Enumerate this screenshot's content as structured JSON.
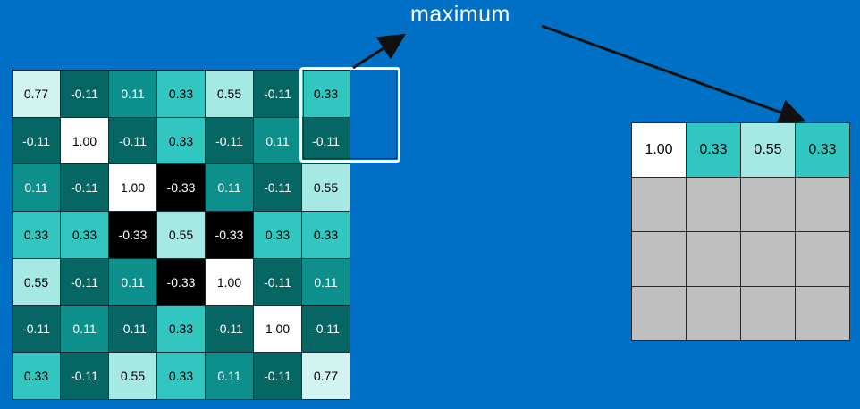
{
  "label": "maximum",
  "colors": {
    "background": "#0070c6",
    "v077": "#d2f3ef",
    "v100": "#ffffff",
    "v055": "#a6e8e3",
    "v033": "#31c6c0",
    "v011": "#0d8f8c",
    "vneg011": "#056663",
    "vneg033": "#000000",
    "empty": "#bfbfbf",
    "arrow": "#111111"
  },
  "input_grid": [
    [
      "0.77",
      "-0.11",
      "0.11",
      "0.33",
      "0.55",
      "-0.11",
      "0.33"
    ],
    [
      "-0.11",
      "1.00",
      "-0.11",
      "0.33",
      "-0.11",
      "0.11",
      "-0.11"
    ],
    [
      "0.11",
      "-0.11",
      "1.00",
      "-0.33",
      "0.11",
      "-0.11",
      "0.55"
    ],
    [
      "0.33",
      "0.33",
      "-0.33",
      "0.55",
      "-0.33",
      "0.33",
      "0.33"
    ],
    [
      "0.55",
      "-0.11",
      "0.11",
      "-0.33",
      "1.00",
      "-0.11",
      "0.11"
    ],
    [
      "-0.11",
      "0.11",
      "-0.11",
      "0.33",
      "-0.11",
      "1.00",
      "-0.11"
    ],
    [
      "0.33",
      "-0.11",
      "0.55",
      "0.33",
      "0.11",
      "-0.11",
      "0.77"
    ]
  ],
  "output_grid": [
    [
      "1.00",
      "0.33",
      "0.55",
      "0.33"
    ],
    [
      "",
      "",
      "",
      ""
    ],
    [
      "",
      "",
      "",
      ""
    ],
    [
      "",
      "",
      "",
      ""
    ]
  ]
}
